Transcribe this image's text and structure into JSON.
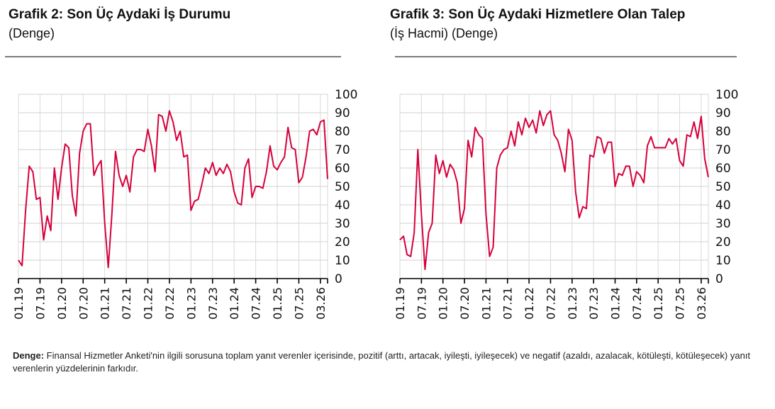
{
  "charts": [
    {
      "title": "Grafik 2: Son Üç Aydaki İş Durumu",
      "subtitle": "(Denge)"
    },
    {
      "title": "Grafik 3: Son Üç Aydaki Hizmetlere Olan Talep",
      "subtitle": " (İş Hacmi) (Denge)"
    }
  ],
  "footnote": {
    "label": "Denge:",
    "text": " Finansal Hizmetler Anketi'nin ilgili sorusuna toplam yanıt verenler içerisinde, pozitif (arttı, artacak, iyileşti, iyileşecek) ve negatif (azaldı, azalacak, kötüleşti, kötüleşecek) yanıt verenlerin yüzdelerinin farkıdır."
  },
  "colors": {
    "line": "#d6003c",
    "grid": "#d9d9d9",
    "axis": "#000000",
    "rule": "#7a7a7a"
  },
  "chart_data": [
    {
      "type": "line",
      "title": "Grafik 2: Son Üç Aydaki İş Durumu",
      "subtitle": "(Denge)",
      "xlabel": "",
      "ylabel": "",
      "ylim": [
        0,
        100
      ],
      "y_ticks": [
        0,
        10,
        20,
        30,
        40,
        50,
        60,
        70,
        80,
        90,
        100
      ],
      "y_axis_position": "right",
      "x_tick_labels": [
        "01.19",
        "07.19",
        "01.20",
        "07.20",
        "01.21",
        "07.21",
        "01.22",
        "07.22",
        "01.23",
        "07.23",
        "01.24",
        "07.24",
        "01.25",
        "07.25",
        "03.26"
      ],
      "grid": true,
      "legend": "none",
      "x_start": "01.19",
      "x_end": "03.26",
      "frequency": "monthly",
      "series": [
        {
          "name": "Denge",
          "values": [
            10,
            7,
            37,
            61,
            58,
            43,
            44,
            21,
            34,
            26,
            60,
            43,
            60,
            73,
            71,
            45,
            34,
            68,
            80,
            84,
            84,
            56,
            61,
            64,
            30,
            6,
            35,
            69,
            56,
            50,
            56,
            47,
            66,
            70,
            70,
            69,
            81,
            72,
            58,
            89,
            88,
            80,
            91,
            85,
            75,
            80,
            66,
            67,
            37,
            42,
            43,
            51,
            60,
            57,
            63,
            56,
            60,
            57,
            62,
            58,
            47,
            41,
            40,
            60,
            65,
            44,
            50,
            50,
            49,
            58,
            72,
            61,
            59,
            63,
            66,
            82,
            71,
            70,
            52,
            55,
            66,
            80,
            81,
            78,
            85,
            86,
            54
          ]
        }
      ]
    },
    {
      "type": "line",
      "title": "Grafik 3: Son Üç Aydaki Hizmetlere Olan Talep",
      "subtitle": "(İş Hacmi) (Denge)",
      "xlabel": "",
      "ylabel": "",
      "ylim": [
        0,
        100
      ],
      "y_ticks": [
        0,
        10,
        20,
        30,
        40,
        50,
        60,
        70,
        80,
        90,
        100
      ],
      "y_axis_position": "right",
      "x_tick_labels": [
        "01.19",
        "07.19",
        "01.20",
        "07.20",
        "01.21",
        "07.21",
        "01.22",
        "07.22",
        "01.23",
        "07.23",
        "01.24",
        "07.24",
        "01.25",
        "07.25",
        "03.26"
      ],
      "grid": true,
      "legend": "none",
      "x_start": "01.19",
      "x_end": "03.26",
      "frequency": "monthly",
      "series": [
        {
          "name": "Denge",
          "values": [
            21,
            23,
            13,
            12,
            25,
            70,
            35,
            5,
            25,
            30,
            67,
            57,
            64,
            55,
            62,
            59,
            52,
            30,
            38,
            75,
            66,
            82,
            78,
            76,
            35,
            12,
            17,
            60,
            67,
            70,
            71,
            80,
            72,
            85,
            78,
            87,
            82,
            86,
            79,
            91,
            83,
            89,
            91,
            78,
            75,
            68,
            58,
            81,
            75,
            47,
            33,
            39,
            38,
            67,
            66,
            77,
            76,
            68,
            74,
            74,
            50,
            57,
            56,
            61,
            61,
            50,
            58,
            56,
            52,
            72,
            77,
            71,
            71,
            71,
            71,
            76,
            73,
            76,
            64,
            61,
            78,
            77,
            85,
            76,
            88,
            65,
            55
          ]
        }
      ]
    }
  ]
}
